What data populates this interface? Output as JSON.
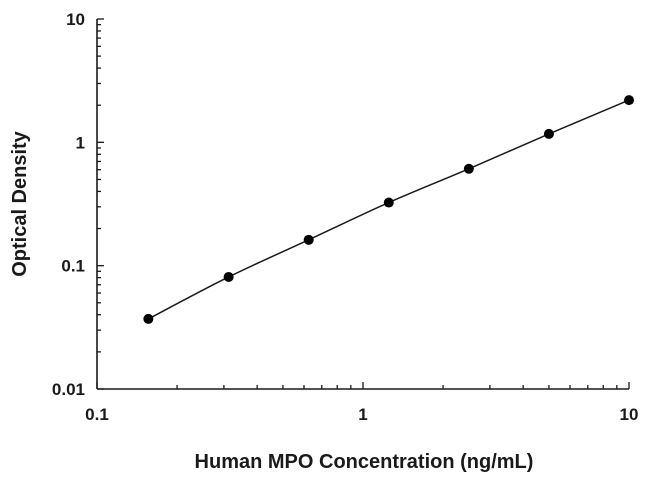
{
  "chart_data": {
    "type": "scatter",
    "xlabel": "Human MPO Concentration (ng/mL)",
    "ylabel": "Optical Density",
    "x_scale": "log",
    "y_scale": "log",
    "xlim": [
      0.1,
      10
    ],
    "ylim": [
      0.01,
      10
    ],
    "x_tick_labels": [
      "0.1",
      "1",
      "10"
    ],
    "y_tick_labels": [
      "0.01",
      "0.1",
      "1",
      "10"
    ],
    "grid": false,
    "fit_line": true,
    "series": [
      {
        "x": [
          0.156,
          0.3125,
          0.625,
          1.25,
          2.5,
          5,
          10
        ],
        "y": [
          0.037,
          0.081,
          0.162,
          0.325,
          0.61,
          1.17,
          2.2
        ]
      }
    ]
  }
}
